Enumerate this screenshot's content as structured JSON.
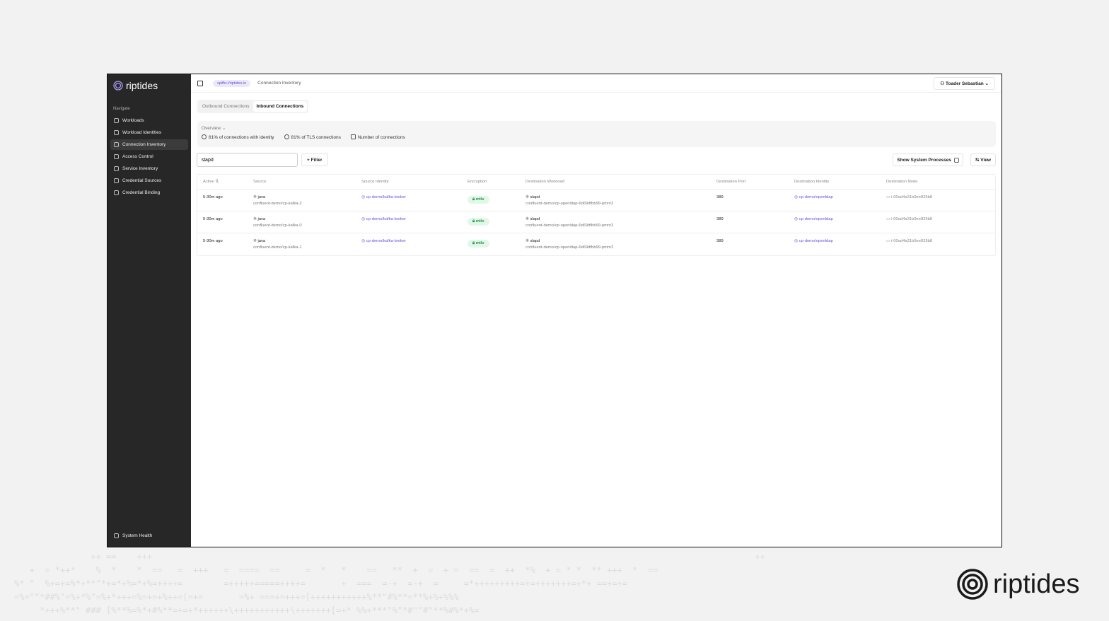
{
  "background_pattern": [
    "               ++ ==    +++                                                                                                                      ++",
    "   +  = *++*    %  *    *  ==   =  +++   =  ====  ==     =  *   *    ==   **  +  =  + =  ==  =  ++  *%  + = * *  ** +++  *  ==",
    "%* \"  %+=+=%*+**\"*+=*+%=*+%=++++=        =+++++=====++++=       +  ===  =-+  =-+  =     =*+++++++++=+=+++++++=+*+ ==+=+=",
    "=%=\"\"*##%\"=%+*%\"=%+*+++=%=+=+%++=[=+=       =%+ ===+=+++=[+++++++++++%**\"#%**=**%+%+%%%",
    "     *+++%**\" ### [%**%=%*+#%**=+=+*++++++\\+++++++++++\\+++++++[=+* %%+***\"%\"*#\"\"#\"**%#%*+%="
  ],
  "sidebar": {
    "brand": "riptides",
    "section": "Navigate",
    "items": [
      {
        "label": "Workloads",
        "active": false
      },
      {
        "label": "Workload Identities",
        "active": false
      },
      {
        "label": "Connection Inventory",
        "active": true
      },
      {
        "label": "Access Control",
        "active": false
      },
      {
        "label": "Service Inventory",
        "active": false
      },
      {
        "label": "Credential Sources",
        "active": false
      },
      {
        "label": "Credential Binding",
        "active": false
      }
    ],
    "footer": "System Health"
  },
  "topbar": {
    "trust_domain": "spiffe://riptides.io",
    "breadcrumb": "Connection Inventory",
    "user": "Toader Sebastian"
  },
  "tabs": [
    {
      "label": "Outbound Connections",
      "selected": false
    },
    {
      "label": "Inbound Connections",
      "selected": true
    }
  ],
  "overview": {
    "title": "Overview",
    "stats": [
      "81% of connections with identity",
      "81% of TLS connections",
      "Number of connections"
    ]
  },
  "toolbar": {
    "search_value": "slapd",
    "filter": "Filter",
    "show_system_processes": "Show System Processes",
    "show_system_checked": false,
    "view": "View"
  },
  "table": {
    "columns": [
      "Active",
      "Source",
      "Source Identity",
      "Encryption",
      "Destination Workload",
      "Destination Port",
      "Destination Identity",
      "Destination Node"
    ],
    "rows": [
      {
        "active": "5-30m ago",
        "source": "java",
        "source_sub": "confluent-demo/cp-kafka-2",
        "source_identity": "cp-demo/kafka-broker",
        "encryption": "mtls",
        "dest_workload": "slapd",
        "dest_workload_sub": "confluent-demo/cp-openldap-6d69dfbb99-pmnr2",
        "dest_port": "389",
        "dest_identity": "cp-demo/openldap",
        "dest_node": "i-00ad4a31b9ee835b8"
      },
      {
        "active": "5-30m ago",
        "source": "java",
        "source_sub": "confluent-demo/cp-kafka-0",
        "source_identity": "cp-demo/kafka-broker",
        "encryption": "mtls",
        "dest_workload": "slapd",
        "dest_workload_sub": "confluent-demo/cp-openldap-6d69dfbb99-pmnr2",
        "dest_port": "389",
        "dest_identity": "cp-demo/openldap",
        "dest_node": "i-00ad4a31b9ee835b8"
      },
      {
        "active": "5-30m ago",
        "source": "java",
        "source_sub": "confluent-demo/cp-kafka-1",
        "source_identity": "cp-demo/kafka-broker",
        "encryption": "mtls",
        "dest_workload": "slapd",
        "dest_workload_sub": "confluent-demo/cp-openldap-6d69dfbb99-pmnr2",
        "dest_port": "389",
        "dest_identity": "cp-demo/openldap",
        "dest_node": "i-00ad4a31b9ee835b8"
      }
    ]
  },
  "watermark": "riptides",
  "colors": {
    "accent": "#6b4fd8",
    "sidebar": "#272727",
    "success": "#1f9a46"
  }
}
